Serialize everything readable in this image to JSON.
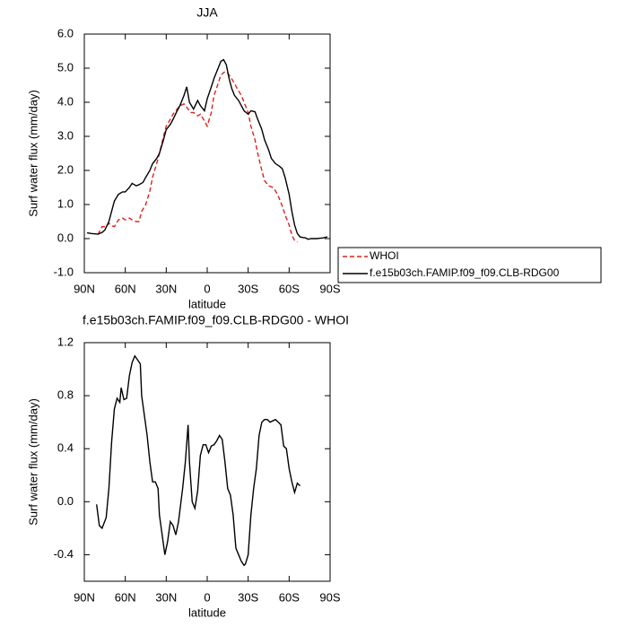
{
  "chart_data": [
    {
      "type": "line",
      "title": "JJA",
      "x_label": "latitude",
      "y_label": "Surf water flux (mm/day)",
      "xlim": [
        90,
        -90
      ],
      "xticks": [
        {
          "value": 90,
          "label": "90N"
        },
        {
          "value": 60,
          "label": "60N"
        },
        {
          "value": 30,
          "label": "30N"
        },
        0,
        {
          "value": -30,
          "label": "30S"
        },
        {
          "value": -60,
          "label": "60S"
        },
        {
          "value": -90,
          "label": "90S"
        }
      ],
      "ylim": [
        -1,
        6
      ],
      "yticks": [
        {
          "value": -1,
          "label": "-1.0"
        },
        {
          "value": 0,
          "label": "0.0"
        },
        {
          "value": 1,
          "label": "1.0"
        },
        {
          "value": 2,
          "label": "2.0"
        },
        {
          "value": 3,
          "label": "3.0"
        },
        {
          "value": 4,
          "label": "4.0"
        },
        {
          "value": 5,
          "label": "5.0"
        },
        {
          "value": 6,
          "label": "6.0"
        }
      ],
      "legend": "right",
      "series": [
        {
          "name": "WHOI",
          "color": "#e0201b",
          "dashed": true,
          "x": [
            80,
            77,
            74,
            72,
            70,
            68,
            65,
            62,
            60,
            57,
            55,
            52,
            50,
            48,
            45,
            42,
            40,
            37,
            35,
            32,
            30,
            27,
            25,
            22,
            20,
            17,
            15,
            12,
            10,
            7,
            5,
            2,
            0,
            -3,
            -5,
            -8,
            -10,
            -13,
            -15,
            -17,
            -20,
            -22,
            -25,
            -27,
            -30,
            -32,
            -35,
            -37,
            -40,
            -42,
            -45,
            -48,
            -50,
            -52,
            -55,
            -57,
            -60,
            -62,
            -64,
            -66
          ],
          "values": [
            0.12,
            0.35,
            0.35,
            0.45,
            0.38,
            0.35,
            0.55,
            0.6,
            0.55,
            0.6,
            0.55,
            0.5,
            0.5,
            0.8,
            1.0,
            1.4,
            1.8,
            2.2,
            2.5,
            3.0,
            3.3,
            3.5,
            3.65,
            3.8,
            3.9,
            3.95,
            3.85,
            3.7,
            3.7,
            3.6,
            3.65,
            3.45,
            3.3,
            3.7,
            4.2,
            4.55,
            4.8,
            4.9,
            4.85,
            4.75,
            4.55,
            4.4,
            4.2,
            4.0,
            3.7,
            3.3,
            2.9,
            2.5,
            2.0,
            1.7,
            1.55,
            1.5,
            1.4,
            1.25,
            0.95,
            0.7,
            0.4,
            0.1,
            -0.05,
            -0.1
          ]
        },
        {
          "name": "f.e15b03ch.FAMIP.f09_f09.CLB-RDG00",
          "color": "#000000",
          "dashed": false,
          "x": [
            88,
            85,
            80,
            77,
            75,
            72,
            70,
            68,
            65,
            62,
            60,
            57,
            55,
            52,
            50,
            47,
            45,
            42,
            40,
            37,
            35,
            32,
            30,
            27,
            25,
            22,
            20,
            17,
            15,
            13,
            10,
            7,
            5,
            2,
            0,
            -3,
            -5,
            -8,
            -10,
            -12,
            -14,
            -16,
            -18,
            -20,
            -23,
            -25,
            -27,
            -30,
            -32,
            -35,
            -37,
            -40,
            -42,
            -45,
            -47,
            -50,
            -53,
            -55,
            -57,
            -60,
            -62,
            -64,
            -66,
            -68,
            -70,
            -72,
            -74,
            -76,
            -80,
            -85,
            -88
          ],
          "values": [
            0.17,
            0.15,
            0.13,
            0.18,
            0.25,
            0.5,
            0.8,
            1.1,
            1.3,
            1.37,
            1.37,
            1.5,
            1.62,
            1.55,
            1.58,
            1.65,
            1.8,
            2.0,
            2.2,
            2.35,
            2.5,
            2.9,
            3.2,
            3.35,
            3.5,
            3.75,
            3.9,
            4.2,
            4.45,
            4.0,
            3.8,
            4.05,
            3.9,
            3.75,
            4.1,
            4.45,
            4.7,
            5.0,
            5.2,
            5.25,
            5.1,
            4.7,
            4.4,
            4.2,
            4.05,
            3.9,
            3.75,
            3.65,
            3.75,
            3.72,
            3.5,
            3.2,
            2.9,
            2.6,
            2.35,
            2.2,
            2.12,
            2.05,
            1.8,
            1.3,
            0.8,
            0.4,
            0.15,
            0.05,
            0.03,
            0.02,
            -0.02,
            0.0,
            0.0,
            0.02,
            0.05
          ]
        }
      ]
    },
    {
      "type": "line",
      "title": "f.e15b03ch.FAMIP.f09_f09.CLB-RDG00 - WHOI",
      "x_label": "latitude",
      "y_label": "Surf water flux (mm/day)",
      "xlim": [
        90,
        -90
      ],
      "xticks": [
        {
          "value": 90,
          "label": "90N"
        },
        {
          "value": 60,
          "label": "60N"
        },
        {
          "value": 30,
          "label": "30N"
        },
        0,
        {
          "value": -30,
          "label": "30S"
        },
        {
          "value": -60,
          "label": "60S"
        },
        {
          "value": -90,
          "label": "90S"
        }
      ],
      "ylim": [
        -0.6,
        1.2
      ],
      "yticks": [
        {
          "value": -0.4,
          "label": "-0.4"
        },
        {
          "value": 0,
          "label": "0.0"
        },
        {
          "value": 0.4,
          "label": "0.4"
        },
        {
          "value": 0.8,
          "label": "0.8"
        },
        {
          "value": 1.2,
          "label": "1.2"
        }
      ],
      "series": [
        {
          "color": "#000000",
          "dashed": false,
          "x": [
            81,
            79,
            77,
            74,
            72,
            70,
            68,
            66,
            64,
            63,
            61,
            59,
            57,
            55,
            53,
            51,
            49,
            48,
            46,
            44,
            42,
            40,
            38,
            36,
            35,
            33,
            31,
            29,
            27,
            25,
            23,
            21,
            18,
            16,
            14,
            13,
            11,
            9,
            7,
            5,
            3,
            1,
            -1,
            -3,
            -5,
            -7,
            -9,
            -11,
            -13,
            -15,
            -17,
            -19,
            -21,
            -23,
            -25,
            -27,
            -28,
            -30,
            -32,
            -34,
            -36,
            -38,
            -40,
            -42,
            -44,
            -46,
            -48,
            -50,
            -52,
            -54,
            -56,
            -58,
            -60,
            -62,
            -64,
            -66,
            -68
          ],
          "values": [
            -0.02,
            -0.18,
            -0.2,
            -0.12,
            0.1,
            0.45,
            0.7,
            0.78,
            0.75,
            0.86,
            0.77,
            0.78,
            0.95,
            1.05,
            1.1,
            1.07,
            1.04,
            0.8,
            0.65,
            0.5,
            0.3,
            0.15,
            0.15,
            0.1,
            -0.1,
            -0.25,
            -0.4,
            -0.3,
            -0.15,
            -0.18,
            -0.25,
            -0.15,
            0.1,
            0.3,
            0.58,
            0.3,
            0.0,
            -0.05,
            0.08,
            0.35,
            0.43,
            0.43,
            0.37,
            0.42,
            0.43,
            0.46,
            0.5,
            0.47,
            0.3,
            0.1,
            0.05,
            -0.1,
            -0.35,
            -0.4,
            -0.45,
            -0.48,
            -0.47,
            -0.4,
            -0.1,
            0.1,
            0.25,
            0.5,
            0.6,
            0.62,
            0.62,
            0.6,
            0.61,
            0.62,
            0.6,
            0.58,
            0.42,
            0.4,
            0.25,
            0.15,
            0.07,
            0.14,
            0.12
          ]
        }
      ]
    }
  ]
}
